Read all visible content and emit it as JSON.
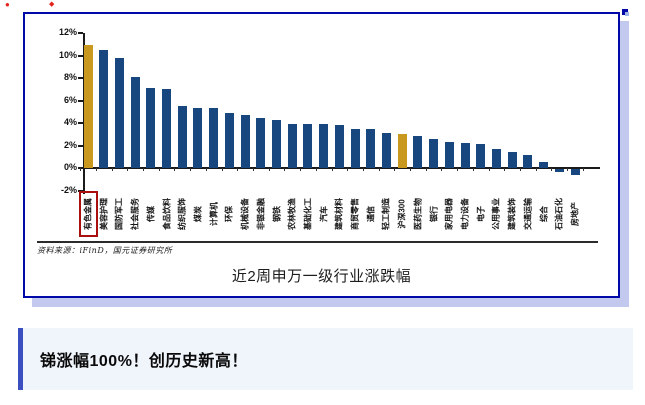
{
  "decor": {
    "red_mark_a": "●",
    "red_mark_b": "◆"
  },
  "icons": {
    "red_mark_a": "red-dot-icon",
    "red_mark_b": "red-diamond-icon",
    "corner_notch": "blue-corner-notch-icon"
  },
  "chart_box": {
    "source_note": "资料来源：iFinD，国元证券研究所",
    "caption": "近2周申万一级行业涨跌幅"
  },
  "banner": {
    "text": "锑涨幅100%！创历史新高！",
    "bg": "#F0F4FB",
    "accent": "#3C4FC0"
  },
  "chart_data": {
    "type": "bar",
    "title": "近2周申万一级行业涨跌幅",
    "xlabel": "",
    "ylabel": "",
    "ylim": [
      -2,
      12
    ],
    "ytick_step": 2,
    "ytick_labels": [
      "12%",
      "10%",
      "8%",
      "6%",
      "4%",
      "2%",
      "0%",
      "-2%"
    ],
    "grid": false,
    "legend": "none",
    "categories": [
      "有色金属",
      "美容护理",
      "国防军工",
      "社会服务",
      "传媒",
      "食品饮料",
      "纺织服饰",
      "煤炭",
      "计算机",
      "环保",
      "机械设备",
      "非银金融",
      "钢铁",
      "农林牧渔",
      "基础化工",
      "汽车",
      "建筑材料",
      "商贸零售",
      "通信",
      "轻工制造",
      "沪深300",
      "医药生物",
      "银行",
      "家用电器",
      "电力设备",
      "电子",
      "公用事业",
      "建筑装饰",
      "交通运输",
      "综合",
      "石油石化",
      "房地产"
    ],
    "values": [
      10.9,
      10.45,
      9.75,
      8.05,
      7.1,
      7.0,
      5.5,
      5.35,
      5.3,
      4.9,
      4.75,
      4.45,
      4.25,
      3.95,
      3.9,
      3.9,
      3.85,
      3.5,
      3.45,
      3.15,
      3.0,
      2.85,
      2.55,
      2.3,
      2.25,
      2.1,
      1.7,
      1.4,
      1.2,
      0.5,
      -0.3,
      -0.55
    ],
    "bar_color": "#17477E",
    "highlight_color": "#C9981F",
    "highlight_indices": [
      0,
      20
    ],
    "boxed_category_index": 0,
    "boxed_category_color": "#AA0F0F"
  }
}
